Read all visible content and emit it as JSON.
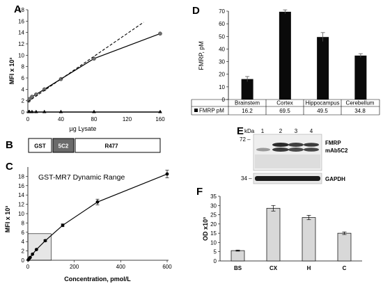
{
  "panels": {
    "A": "A",
    "B": "B",
    "C": "C",
    "D": "D",
    "E": "E",
    "F": "F"
  },
  "chart_data": [
    {
      "id": "A",
      "type": "line",
      "xlabel": "µg Lysate",
      "ylabel": "MFI x 10³",
      "xlim": [
        0,
        160
      ],
      "ylim": [
        0,
        18
      ],
      "x_ticks": [
        "0",
        "40",
        "80",
        "120",
        "160"
      ],
      "y_ticks": [
        "0",
        "2",
        "4",
        "6",
        "8",
        "10",
        "12",
        "14",
        "16",
        "18"
      ],
      "series": [
        {
          "style": "markers+curve",
          "x": [
            1,
            2,
            5,
            10,
            20,
            40,
            80,
            160
          ],
          "y": [
            2.0,
            2.3,
            2.7,
            3.1,
            4.0,
            5.8,
            9.4,
            13.8
          ]
        },
        {
          "style": "dashed-linear",
          "x": [
            0,
            140
          ],
          "y": [
            1.8,
            15.8
          ]
        },
        {
          "style": "baseline-triangles",
          "x": [
            1,
            2,
            5,
            10,
            20,
            40,
            80,
            160
          ],
          "y": [
            0,
            0,
            0,
            0,
            0,
            0,
            0,
            0
          ]
        }
      ]
    },
    {
      "id": "C",
      "type": "line",
      "title": "GST-MR7 Dynamic Range",
      "xlabel": "Concentration, pmol/L",
      "ylabel": "MFI x 10³",
      "xlim": [
        0,
        600
      ],
      "ylim": [
        0,
        20
      ],
      "x_ticks": [
        "0",
        "200",
        "400",
        "600"
      ],
      "y_ticks": [
        "0",
        "2",
        "4",
        "6",
        "8",
        "10",
        "12",
        "14",
        "16",
        "18"
      ],
      "series": [
        {
          "x": [
            2,
            5,
            10,
            20,
            37,
            75,
            150,
            300,
            600
          ],
          "y": [
            0.1,
            0.3,
            0.6,
            1.3,
            2.3,
            4.2,
            7.5,
            12.5,
            18.5
          ],
          "err": [
            0.1,
            0.1,
            0.1,
            0.1,
            0.1,
            0.2,
            0.3,
            0.6,
            0.8
          ]
        }
      ],
      "shaded_region": {
        "x": [
          0,
          100
        ],
        "y": [
          0,
          5.7
        ]
      }
    },
    {
      "id": "D",
      "type": "bar",
      "ylabel": "FMRP, pM",
      "ylim": [
        0,
        70
      ],
      "y_ticks": [
        "0",
        "10",
        "20",
        "30",
        "40",
        "50",
        "60",
        "70"
      ],
      "categories": [
        "Brainstem",
        "Cortex",
        "Hippocampus",
        "Cerebellum"
      ],
      "series": [
        {
          "name": "FMRP pM",
          "values": [
            16.2,
            69.5,
            49.5,
            34.8
          ],
          "err": [
            2.0,
            1.5,
            3.5,
            1.5
          ]
        }
      ],
      "table_values": [
        "16.2",
        "69.5",
        "49.5",
        "34.8"
      ]
    },
    {
      "id": "F",
      "type": "bar",
      "ylabel": "OD x10³",
      "ylim": [
        0,
        35
      ],
      "y_ticks": [
        "0",
        "5",
        "10",
        "15",
        "20",
        "25",
        "30",
        "35"
      ],
      "categories": [
        "BS",
        "CX",
        "H",
        "C"
      ],
      "series": [
        {
          "values": [
            5.6,
            28.5,
            23.5,
            15.0
          ],
          "err": [
            0.3,
            1.5,
            1.2,
            0.7
          ]
        }
      ]
    }
  ],
  "construct_B": {
    "gst": "GST",
    "c2": "5C2",
    "r477": "R477"
  },
  "blot_E": {
    "kda": "kDa",
    "lanes": [
      "1",
      "2",
      "3",
      "4"
    ],
    "marker72": "72 –",
    "marker34": "34 –",
    "fmrp": "FMRP",
    "mab": "mAb5C2",
    "gapdh": "GAPDH"
  },
  "colors": {
    "bar_dark": "#0a0a0a",
    "bar_light": "#d8d8d8",
    "marker": "#6e6e6e",
    "shade": "#e6e6e6"
  }
}
